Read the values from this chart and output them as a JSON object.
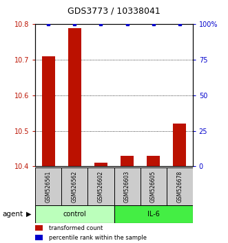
{
  "title": "GDS3773 / 10338041",
  "samples": [
    "GSM526561",
    "GSM526562",
    "GSM526602",
    "GSM526603",
    "GSM526605",
    "GSM526678"
  ],
  "red_values": [
    10.71,
    10.79,
    10.41,
    10.43,
    10.43,
    10.52
  ],
  "blue_values_pct": [
    100,
    100,
    100,
    100,
    100,
    100
  ],
  "ylim_left": [
    10.4,
    10.8
  ],
  "ylim_right": [
    0,
    100
  ],
  "yticks_left": [
    10.4,
    10.5,
    10.6,
    10.7,
    10.8
  ],
  "yticks_right": [
    0,
    25,
    50,
    75,
    100
  ],
  "groups": [
    {
      "label": "control",
      "color": "#bbffbb"
    },
    {
      "label": "IL-6",
      "color": "#44ee44"
    }
  ],
  "group_label": "agent",
  "legend_red": "transformed count",
  "legend_blue": "percentile rank within the sample",
  "bar_color": "#bb1100",
  "dot_color": "#0000cc",
  "sample_box_color": "#cccccc",
  "bar_width": 0.5
}
